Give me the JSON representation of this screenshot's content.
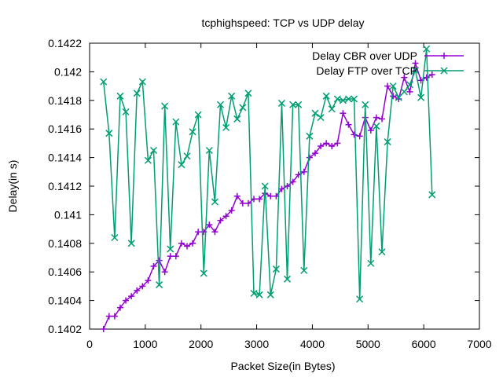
{
  "chart_data": {
    "type": "line",
    "title": "tcphighspeed: TCP vs UDP delay",
    "xlabel": "Packet Size(in Bytes)",
    "ylabel": "Delay(in s)",
    "xlim": [
      0,
      7000
    ],
    "ylim": [
      0.1402,
      0.1422
    ],
    "x_ticks": [
      0,
      1000,
      2000,
      3000,
      4000,
      5000,
      6000,
      7000
    ],
    "y_ticks": [
      0.1402,
      0.1404,
      0.1406,
      0.1408,
      0.141,
      0.1412,
      0.1414,
      0.1416,
      0.1418,
      0.142,
      0.1422
    ],
    "x_tick_labels": [
      "0",
      "1000",
      "2000",
      "3000",
      "4000",
      "5000",
      "6000",
      "7000"
    ],
    "y_tick_labels": [
      "0.1402",
      "0.1404",
      "0.1406",
      "0.1408",
      "0.141",
      "0.1412",
      "0.1414",
      "0.1416",
      "0.1418",
      "0.142",
      "0.1422"
    ],
    "grid": false,
    "legend_position": "top-right",
    "series": [
      {
        "name": "Delay CBR over UDP",
        "color": "#9400d3",
        "marker": "plus",
        "x": [
          250,
          350,
          450,
          550,
          650,
          750,
          850,
          950,
          1050,
          1150,
          1250,
          1350,
          1450,
          1550,
          1650,
          1750,
          1850,
          1950,
          2050,
          2150,
          2250,
          2350,
          2450,
          2550,
          2650,
          2750,
          2850,
          2950,
          3050,
          3150,
          3250,
          3350,
          3450,
          3550,
          3650,
          3750,
          3850,
          3950,
          4050,
          4150,
          4250,
          4350,
          4450,
          4550,
          4650,
          4750,
          4850,
          4950,
          5050,
          5150,
          5250,
          5350,
          5450,
          5550,
          5650,
          5750,
          5850,
          5950,
          6050,
          6150
        ],
        "y": [
          0.1402,
          0.14029,
          0.14029,
          0.14035,
          0.1404,
          0.14043,
          0.14047,
          0.1405,
          0.14054,
          0.14064,
          0.14068,
          0.1406,
          0.14071,
          0.14071,
          0.1408,
          0.14078,
          0.1408,
          0.14088,
          0.14088,
          0.14093,
          0.14088,
          0.14096,
          0.14099,
          0.14103,
          0.14113,
          0.14108,
          0.14108,
          0.14111,
          0.14111,
          0.14115,
          0.14113,
          0.14113,
          0.14118,
          0.1412,
          0.14123,
          0.14128,
          0.1413,
          0.1414,
          0.14143,
          0.14148,
          0.1415,
          0.14148,
          0.1415,
          0.14171,
          0.14163,
          0.14156,
          0.14155,
          0.14168,
          0.14159,
          0.14168,
          0.14167,
          0.1419,
          0.14183,
          0.14181,
          0.14196,
          0.14186,
          0.14206,
          0.14194,
          0.14196,
          0.14198
        ]
      },
      {
        "name": "Delay FTP over TCP",
        "color": "#009e73",
        "marker": "cross",
        "x": [
          250,
          350,
          450,
          550,
          650,
          750,
          850,
          950,
          1050,
          1150,
          1250,
          1350,
          1450,
          1550,
          1650,
          1750,
          1850,
          1950,
          2050,
          2150,
          2250,
          2350,
          2450,
          2550,
          2650,
          2750,
          2850,
          2950,
          3050,
          3150,
          3250,
          3350,
          3450,
          3550,
          3650,
          3750,
          3850,
          3950,
          4050,
          4150,
          4250,
          4350,
          4450,
          4550,
          4650,
          4750,
          4850,
          4950,
          5050,
          5150,
          5250,
          5350,
          5450,
          5550,
          5650,
          5750,
          5850,
          5950,
          6050,
          6150
        ],
        "y": [
          0.14193,
          0.14157,
          0.14084,
          0.14183,
          0.14172,
          0.1408,
          0.14185,
          0.14193,
          0.14138,
          0.14145,
          0.14051,
          0.14176,
          0.14076,
          0.14165,
          0.14135,
          0.14141,
          0.14158,
          0.1417,
          0.14059,
          0.14145,
          0.14109,
          0.14177,
          0.14161,
          0.14183,
          0.14167,
          0.14175,
          0.14185,
          0.14045,
          0.14044,
          0.1412,
          0.14044,
          0.14062,
          0.14178,
          0.14055,
          0.14177,
          0.14177,
          0.14061,
          0.14155,
          0.14171,
          0.14168,
          0.14183,
          0.14174,
          0.14181,
          0.1418,
          0.14181,
          0.14181,
          0.14041,
          0.14177,
          0.14066,
          0.14162,
          0.14074,
          0.14151,
          0.1419,
          0.14182,
          0.14186,
          0.14191,
          0.14201,
          0.14182,
          0.14216,
          0.14114
        ]
      }
    ]
  }
}
